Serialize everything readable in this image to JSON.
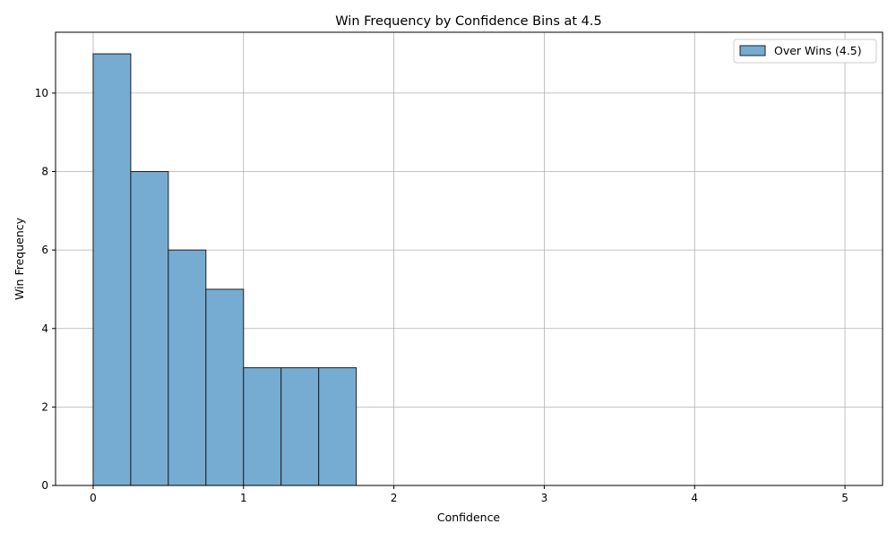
{
  "chart_data": {
    "type": "bar",
    "title": "Win Frequency by Confidence Bins at 4.5",
    "xlabel": "Confidence",
    "ylabel": "Win Frequency",
    "xlim": [
      -0.25,
      5.25
    ],
    "ylim": [
      0,
      11.55
    ],
    "x_ticks": [
      0,
      1,
      2,
      3,
      4,
      5
    ],
    "y_ticks": [
      0,
      2,
      4,
      6,
      8,
      10
    ],
    "grid": true,
    "legend_position": "top-right",
    "series": [
      {
        "name": "Over Wins (4.5)",
        "color": "#76acd1",
        "edge_color": "#1f1f1f",
        "bin_edges": [
          0,
          0.25,
          0.5,
          0.75,
          1.0,
          1.25,
          1.5,
          1.75
        ],
        "values": [
          11,
          8,
          6,
          5,
          3,
          3,
          3
        ]
      }
    ]
  }
}
